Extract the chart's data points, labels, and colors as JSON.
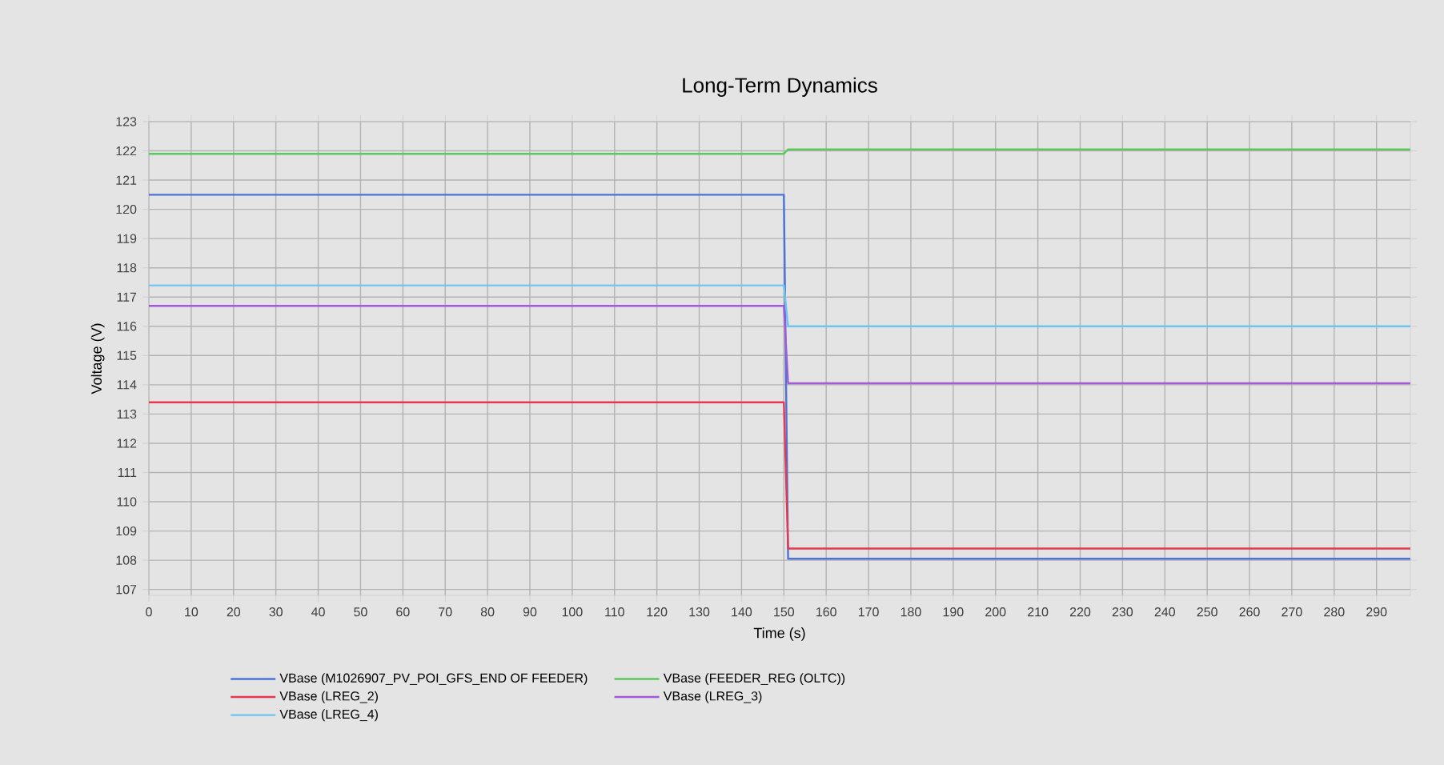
{
  "chart_data": {
    "type": "line",
    "title": "Long-Term Dynamics",
    "xlabel": "Time (s)",
    "ylabel": "Voltage (V)",
    "xlim": [
      0,
      298
    ],
    "ylim": [
      106.8,
      123
    ],
    "xticks": [
      0,
      10,
      20,
      30,
      40,
      50,
      60,
      70,
      80,
      90,
      100,
      110,
      120,
      130,
      140,
      150,
      160,
      170,
      180,
      190,
      200,
      210,
      220,
      230,
      240,
      250,
      260,
      270,
      280,
      290
    ],
    "yticks": [
      107,
      108,
      109,
      110,
      111,
      112,
      113,
      114,
      115,
      116,
      117,
      118,
      119,
      120,
      121,
      122,
      123
    ],
    "grid": true,
    "legend": "bottom",
    "marker": "none",
    "line_style": "solid",
    "x": [
      0,
      150,
      151,
      298
    ],
    "series": [
      {
        "name": "VBase (M1026907_PV_POI_GFS_END OF FEEDER)",
        "color": "#4a72d8",
        "values": [
          120.5,
          120.5,
          108.05,
          108.05
        ]
      },
      {
        "name": "VBase (FEEDER_REG (OLTC))",
        "color": "#5cc85c",
        "values": [
          121.9,
          121.9,
          122.05,
          122.05
        ]
      },
      {
        "name": "VBase (LREG_2)",
        "color": "#e8384f",
        "values": [
          113.4,
          113.4,
          108.4,
          108.4
        ]
      },
      {
        "name": "VBase (LREG_3)",
        "color": "#a35ad6",
        "values": [
          116.7,
          116.7,
          114.05,
          114.05
        ]
      },
      {
        "name": "VBase (LREG_4)",
        "color": "#6ec3f0",
        "values": [
          117.4,
          117.4,
          116.0,
          116.0
        ]
      }
    ]
  }
}
